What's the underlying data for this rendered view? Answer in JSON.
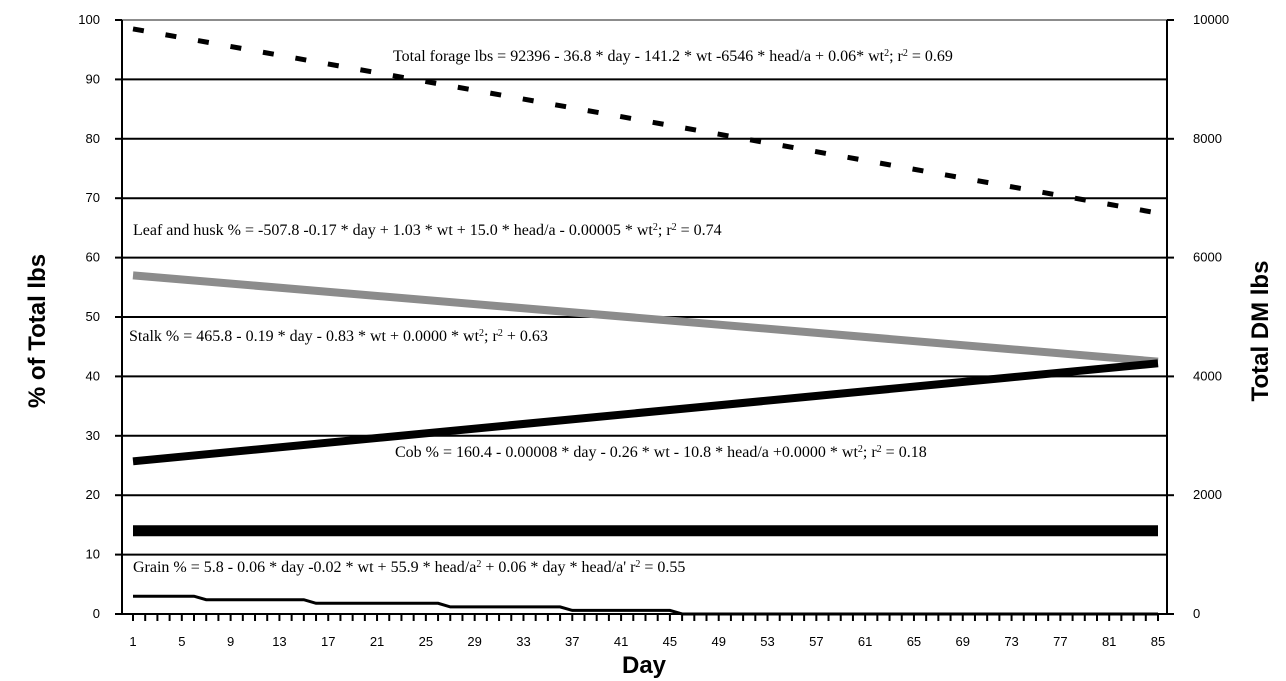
{
  "chart_data": {
    "type": "line",
    "xlabel": "Day",
    "ylabel_left": "% of Total lbs",
    "ylabel_right": "Total DM lbs",
    "x_ticks": [
      1,
      5,
      9,
      13,
      17,
      21,
      25,
      29,
      33,
      37,
      41,
      45,
      49,
      53,
      57,
      61,
      65,
      69,
      73,
      77,
      81,
      85
    ],
    "x_range": [
      1,
      85
    ],
    "y_left_range": [
      0,
      100
    ],
    "y_left_ticks": [
      0,
      10,
      20,
      30,
      40,
      50,
      60,
      70,
      80,
      90,
      100
    ],
    "y_right_range": [
      0,
      10000
    ],
    "y_right_ticks": [
      0,
      2000,
      4000,
      6000,
      8000,
      10000
    ],
    "grid": true,
    "annotations": [
      {
        "parts": [
          [
            "Total forage lbs = 92396 - 36.8 * day - 141.2 * wt -6546 * head/a + 0.06* wt",
            false
          ],
          [
            "2",
            true
          ],
          [
            "; r",
            false
          ],
          [
            "2",
            true
          ],
          [
            " = 0.69",
            false
          ]
        ]
      },
      {
        "parts": [
          [
            "Leaf and husk % = -507.8 -0.17 * day + 1.03 * wt + 15.0 * head/a - 0.00005 * wt",
            false
          ],
          [
            "2",
            true
          ],
          [
            "; r",
            false
          ],
          [
            "2",
            true
          ],
          [
            " = 0.74",
            false
          ]
        ]
      },
      {
        "parts": [
          [
            "Stalk % = 465.8 - 0.19 * day - 0.83 * wt + 0.0000 * wt",
            false
          ],
          [
            "2",
            true
          ],
          [
            "; r",
            false
          ],
          [
            "2",
            true
          ],
          [
            " + 0.63",
            false
          ]
        ]
      },
      {
        "parts": [
          [
            "Cob % = 160.4 - 0.00008 * day - 0.26 * wt - 10.8 * head/a +0.0000 * wt",
            false
          ],
          [
            "2",
            true
          ],
          [
            "; r",
            false
          ],
          [
            "2",
            true
          ],
          [
            " = 0.18",
            false
          ]
        ]
      },
      {
        "parts": [
          [
            "Grain % = 5.8 - 0.06 * day -0.02 * wt + 55.9 * head/a",
            false
          ],
          [
            "2",
            true
          ],
          [
            " + 0.06 * day * head/a' r",
            false
          ],
          [
            "2",
            true
          ],
          [
            " = 0.55",
            false
          ]
        ]
      }
    ],
    "series": [
      {
        "axis": "right",
        "color": "#000000",
        "style": "dashed",
        "x": [
          1,
          85
        ],
        "y": [
          9850,
          6750
        ]
      },
      {
        "axis": "left",
        "color": "#8c8c8c",
        "style": "thick",
        "x": [
          1,
          85
        ],
        "y": [
          57,
          42.5
        ]
      },
      {
        "axis": "left",
        "color": "#000000",
        "style": "thick",
        "x": [
          1,
          85
        ],
        "y": [
          25.7,
          42.2
        ]
      },
      {
        "axis": "left",
        "color": "#000000",
        "style": "bold",
        "x": [
          1,
          85
        ],
        "y": [
          14,
          14
        ]
      },
      {
        "axis": "left",
        "color": "#000000",
        "style": "thin-step",
        "x": [
          1,
          6,
          7,
          15,
          16,
          26,
          27,
          36,
          37,
          45,
          46,
          85
        ],
        "y": [
          3,
          3,
          2.4,
          2.4,
          1.8,
          1.8,
          1.2,
          1.2,
          0.6,
          0.6,
          0,
          0
        ]
      }
    ]
  }
}
